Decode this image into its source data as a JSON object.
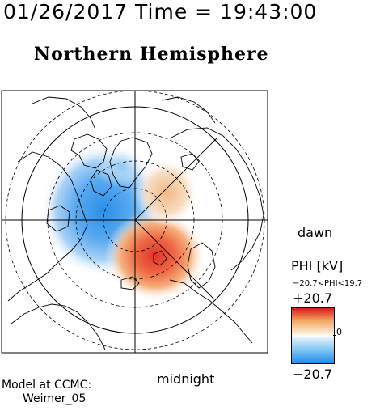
{
  "header": {
    "timestamp": "01/26/2017 Time = 19:43:00",
    "title": "Northern Hemisphere"
  },
  "map": {
    "orientation_labels": {
      "right": "dawn",
      "bottom": "midnight"
    },
    "projection": "polar",
    "colors": {
      "positive": "#d7191c",
      "negative": "#1f8cec",
      "neutral": "#ffffff"
    }
  },
  "colorbar": {
    "title": "PHI [kV]",
    "range_text": "−20.7<PHI<19.7",
    "max_label": "+20.7",
    "zero_label": "0",
    "min_label": "−20.7"
  },
  "credits": {
    "line1": "Model at CCMC:",
    "line2": "Weimer_05"
  }
}
